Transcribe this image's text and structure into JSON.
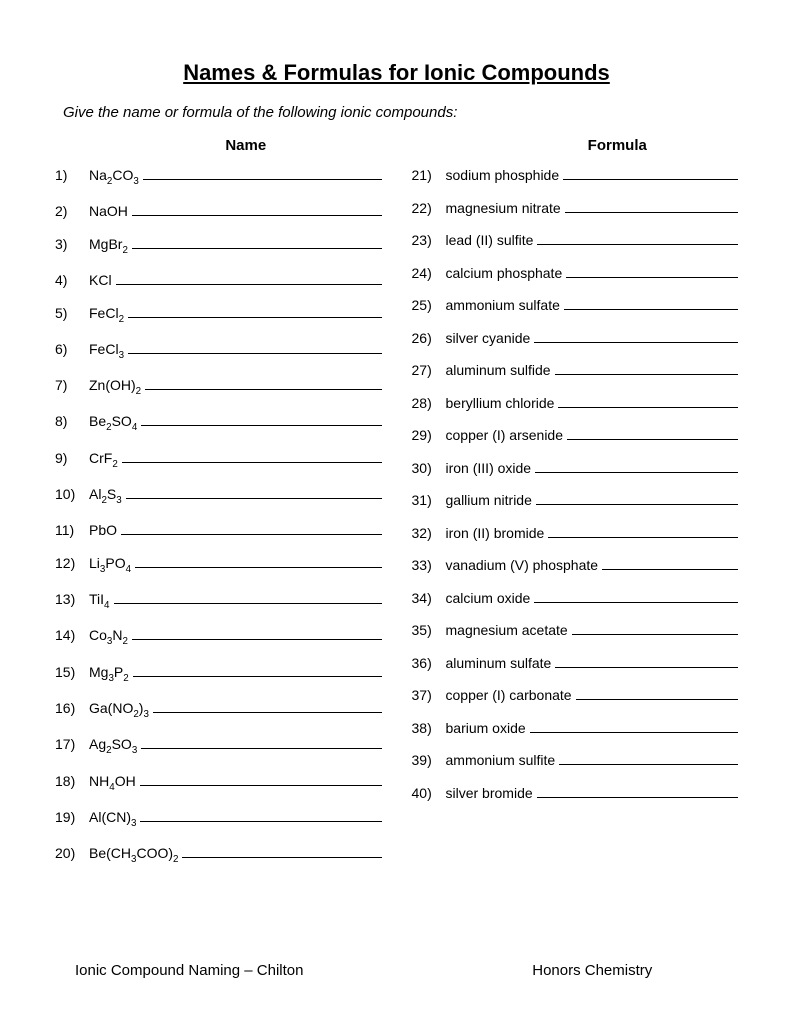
{
  "title": "Names & Formulas for Ionic Compounds",
  "instructions": "Give the name  or formula of the following ionic compounds:",
  "header_left": "Name",
  "header_right": "Formula",
  "left_items": [
    {
      "num": "1)",
      "html": "Na<sub>2</sub>CO<sub>3</sub>"
    },
    {
      "num": "2)",
      "html": "NaOH"
    },
    {
      "num": "3)",
      "html": "MgBr<sub>2</sub>"
    },
    {
      "num": "4)",
      "html": "KCl"
    },
    {
      "num": "5)",
      "html": "FeCl<sub>2</sub>"
    },
    {
      "num": "6)",
      "html": "FeCl<sub>3</sub>"
    },
    {
      "num": "7)",
      "html": "Zn(OH)<sub>2</sub>"
    },
    {
      "num": "8)",
      "html": "Be<sub>2</sub>SO<sub>4</sub>"
    },
    {
      "num": "9)",
      "html": "CrF<sub>2</sub>"
    },
    {
      "num": "10)",
      "html": "Al<sub>2</sub>S<sub>3</sub>"
    },
    {
      "num": "11)",
      "html": "PbO"
    },
    {
      "num": "12)",
      "html": "Li<sub>3</sub>PO<sub>4</sub>"
    },
    {
      "num": "13)",
      "html": "TiI<sub>4</sub>"
    },
    {
      "num": "14)",
      "html": "Co<sub>3</sub>N<sub>2</sub>"
    },
    {
      "num": "15)",
      "html": "Mg<sub>3</sub>P<sub>2</sub>"
    },
    {
      "num": "16)",
      "html": "Ga(NO<sub>2</sub>)<sub>3</sub>"
    },
    {
      "num": "17)",
      "html": "Ag<sub>2</sub>SO<sub>3</sub>"
    },
    {
      "num": "18)",
      "html": "NH<sub>4</sub>OH"
    },
    {
      "num": "19)",
      "html": "Al(CN)<sub>3</sub>"
    },
    {
      "num": "20)",
      "html": "Be(CH<sub>3</sub>COO)<sub>2</sub>"
    }
  ],
  "right_items": [
    {
      "num": "21)",
      "text": "sodium phosphide"
    },
    {
      "num": "22)",
      "text": "magnesium nitrate"
    },
    {
      "num": "23)",
      "text": "lead (II) sulfite"
    },
    {
      "num": "24)",
      "text": "calcium phosphate"
    },
    {
      "num": "25)",
      "text": "ammonium sulfate"
    },
    {
      "num": "26)",
      "text": "silver cyanide"
    },
    {
      "num": "27)",
      "text": "aluminum  sulfide"
    },
    {
      "num": "28)",
      "text": "beryllium chloride"
    },
    {
      "num": "29)",
      "text": "copper (I) arsenide"
    },
    {
      "num": "30)",
      "text": "iron (III) oxide"
    },
    {
      "num": "31)",
      "text": "gallium nitride"
    },
    {
      "num": "32)",
      "text": "iron (II) bromide"
    },
    {
      "num": "33)",
      "text": "vanadium (V) phosphate"
    },
    {
      "num": "34)",
      "text": "calcium oxide"
    },
    {
      "num": "35)",
      "text": "magnesium acetate"
    },
    {
      "num": "36)",
      "text": "aluminum sulfate"
    },
    {
      "num": "37)",
      "text": "copper (I) carbonate"
    },
    {
      "num": "38)",
      "text": "barium oxide"
    },
    {
      "num": "39)",
      "text": "ammonium sulfite"
    },
    {
      "num": "40)",
      "text": "silver bromide"
    }
  ],
  "footer_left": "Ionic Compound Naming – Chilton",
  "footer_right": "Honors Chemistry",
  "colors": {
    "background": "#ffffff",
    "text": "#000000"
  },
  "fonts": {
    "title_size": 22,
    "body_size": 14,
    "instruction_size": 15
  }
}
